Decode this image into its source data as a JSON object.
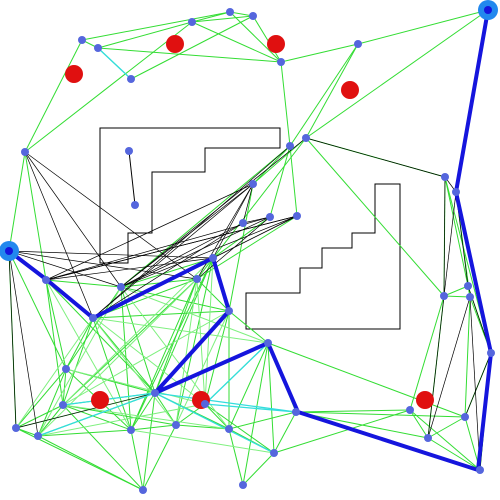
{
  "colors": {
    "background": "#ffffff",
    "obstacle": "#000000",
    "edge_green": "#33dd33",
    "edge_light": "#7ff07f",
    "edge_cyan": "#33dddd",
    "edge_black": "#000000",
    "node": "#5566dd",
    "path": "#1515dd",
    "goal": "#2288ee",
    "sample": "#e01010"
  },
  "icons": {
    "start": "start-node-icon",
    "goal": "goal-node-icon",
    "sample": "red-sample-point-icon",
    "node": "roadmap-node-icon"
  }
}
